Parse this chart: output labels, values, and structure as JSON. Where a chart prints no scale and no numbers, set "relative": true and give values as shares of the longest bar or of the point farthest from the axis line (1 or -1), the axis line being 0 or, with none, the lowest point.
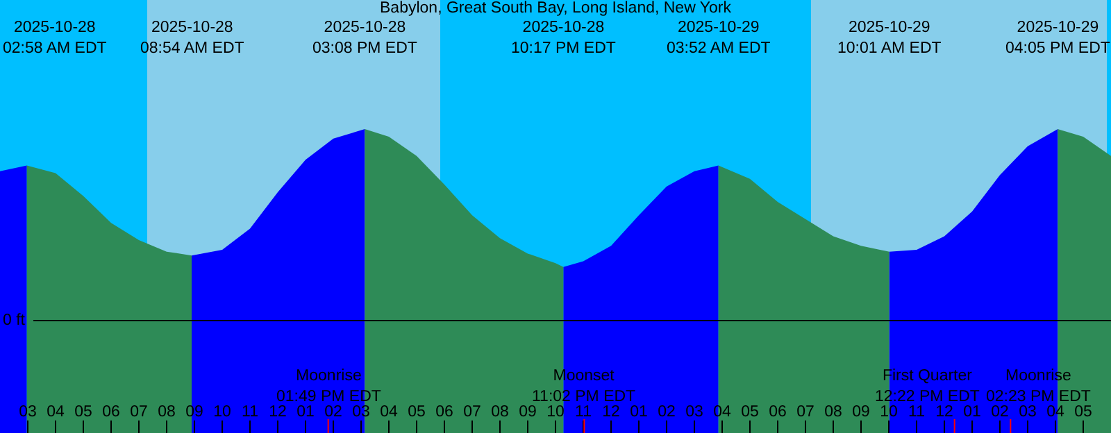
{
  "chart_data": {
    "type": "area",
    "title": "Babylon, Great South Bay, Long Island, New York",
    "relative": true,
    "x": [
      "2025-10-28T02:00",
      "2025-10-28T02:58",
      "2025-10-28T04:00",
      "2025-10-28T05:00",
      "2025-10-28T06:00",
      "2025-10-28T07:00",
      "2025-10-28T08:00",
      "2025-10-28T08:54",
      "2025-10-28T10:00",
      "2025-10-28T11:00",
      "2025-10-28T12:00",
      "2025-10-28T13:00",
      "2025-10-28T14:00",
      "2025-10-28T15:08",
      "2025-10-28T16:00",
      "2025-10-28T17:00",
      "2025-10-28T18:00",
      "2025-10-28T19:00",
      "2025-10-28T20:00",
      "2025-10-28T21:00",
      "2025-10-28T22:00",
      "2025-10-28T22:17",
      "2025-10-28T23:00",
      "2025-10-29T00:00",
      "2025-10-29T01:00",
      "2025-10-29T02:00",
      "2025-10-29T03:00",
      "2025-10-29T03:52",
      "2025-10-29T05:00",
      "2025-10-29T06:00",
      "2025-10-29T07:00",
      "2025-10-29T08:00",
      "2025-10-29T09:00",
      "2025-10-29T10:01",
      "2025-10-29T11:00",
      "2025-10-29T12:00",
      "2025-10-29T13:00",
      "2025-10-29T14:00",
      "2025-10-29T15:00",
      "2025-10-29T16:05",
      "2025-10-29T17:00",
      "2025-10-29T18:00"
    ],
    "series": [
      {
        "color": "#0000ff",
        "values": [
          0.78,
          0.81,
          null,
          null,
          null,
          null,
          null,
          0.34,
          0.37,
          0.48,
          0.67,
          0.84,
          0.95,
          1.0,
          null,
          null,
          null,
          null,
          null,
          null,
          null,
          0.28,
          0.31,
          0.39,
          0.55,
          0.7,
          0.78,
          0.81,
          null,
          null,
          null,
          null,
          null,
          0.36,
          0.37,
          0.44,
          0.57,
          0.76,
          0.91,
          1.0,
          null,
          null
        ]
      },
      {
        "color": "#2e8b57",
        "values": [
          null,
          0.81,
          0.77,
          0.65,
          0.51,
          0.42,
          0.36,
          0.34,
          null,
          null,
          null,
          null,
          null,
          1.0,
          0.96,
          0.86,
          0.71,
          0.55,
          0.43,
          0.35,
          0.3,
          0.28,
          null,
          null,
          null,
          null,
          null,
          0.81,
          0.74,
          0.62,
          0.53,
          0.44,
          0.39,
          0.36,
          null,
          null,
          null,
          null,
          null,
          1.0,
          0.96,
          0.86
        ]
      }
    ],
    "xlim": [
      "2025-10-28T02:00",
      "2025-10-29T18:00"
    ],
    "xticks": [
      {
        "value": "2025-10-28T03:00",
        "label": "03"
      },
      {
        "value": "2025-10-28T04:00",
        "label": "04"
      },
      {
        "value": "2025-10-28T05:00",
        "label": "05"
      },
      {
        "value": "2025-10-28T06:00",
        "label": "06"
      },
      {
        "value": "2025-10-28T07:00",
        "label": "07"
      },
      {
        "value": "2025-10-28T08:00",
        "label": "08"
      },
      {
        "value": "2025-10-28T09:00",
        "label": "09"
      },
      {
        "value": "2025-10-28T10:00",
        "label": "10"
      },
      {
        "value": "2025-10-28T11:00",
        "label": "11"
      },
      {
        "value": "2025-10-28T12:00",
        "label": "12"
      },
      {
        "value": "2025-10-28T13:00",
        "label": "01"
      },
      {
        "value": "2025-10-28T14:00",
        "label": "02"
      },
      {
        "value": "2025-10-28T15:00",
        "label": "03"
      },
      {
        "value": "2025-10-28T16:00",
        "label": "04"
      },
      {
        "value": "2025-10-28T17:00",
        "label": "05"
      },
      {
        "value": "2025-10-28T18:00",
        "label": "06"
      },
      {
        "value": "2025-10-28T19:00",
        "label": "07"
      },
      {
        "value": "2025-10-28T20:00",
        "label": "08"
      },
      {
        "value": "2025-10-28T21:00",
        "label": "09"
      },
      {
        "value": "2025-10-28T22:00",
        "label": "10"
      },
      {
        "value": "2025-10-28T23:00",
        "label": "11"
      },
      {
        "value": "2025-10-29T00:00",
        "label": "12"
      },
      {
        "value": "2025-10-29T01:00",
        "label": "01"
      },
      {
        "value": "2025-10-29T02:00",
        "label": "02"
      },
      {
        "value": "2025-10-29T03:00",
        "label": "03"
      },
      {
        "value": "2025-10-29T04:00",
        "label": "04"
      },
      {
        "value": "2025-10-29T05:00",
        "label": "05"
      },
      {
        "value": "2025-10-29T06:00",
        "label": "06"
      },
      {
        "value": "2025-10-29T07:00",
        "label": "07"
      },
      {
        "value": "2025-10-29T08:00",
        "label": "08"
      },
      {
        "value": "2025-10-29T09:00",
        "label": "09"
      },
      {
        "value": "2025-10-29T10:00",
        "label": "10"
      },
      {
        "value": "2025-10-29T11:00",
        "label": "11"
      },
      {
        "value": "2025-10-29T12:00",
        "label": "12"
      },
      {
        "value": "2025-10-29T13:00",
        "label": "01"
      },
      {
        "value": "2025-10-29T14:00",
        "label": "02"
      },
      {
        "value": "2025-10-29T15:00",
        "label": "03"
      },
      {
        "value": "2025-10-29T16:00",
        "label": "04"
      },
      {
        "value": "2025-10-29T17:00",
        "label": "05"
      }
    ],
    "bands": [
      {
        "axis": "x",
        "from": "2025-10-28T02:00",
        "to": "2025-10-28T07:18",
        "color": "#00bfff"
      },
      {
        "axis": "x",
        "from": "2025-10-28T07:18",
        "to": "2025-10-28T17:51",
        "color": "#87ceeb"
      },
      {
        "axis": "x",
        "from": "2025-10-28T17:51",
        "to": "2025-10-29T07:12",
        "color": "#00bfff"
      },
      {
        "axis": "x",
        "from": "2025-10-29T07:12",
        "to": "2025-10-29T17:51",
        "color": "#87ceeb"
      },
      {
        "axis": "x",
        "from": "2025-10-29T17:51",
        "to": "2025-10-29T18:00",
        "color": "#00bfff"
      }
    ],
    "ref_lines": [
      {
        "axis": "y",
        "value": 0,
        "label": "0 ft",
        "color": "#000000"
      },
      {
        "axis": "x",
        "value": "2025-10-28T13:49",
        "label": "Moonrise\n01:49 PM EDT",
        "color": "#ff0000"
      },
      {
        "axis": "x",
        "value": "2025-10-28T23:02",
        "label": "Moonset\n11:02 PM EDT",
        "color": "#ff0000"
      },
      {
        "axis": "x",
        "value": "2025-10-29T12:22",
        "label": "First Quarter\n12:22 PM EDT",
        "color": "#ff0000"
      },
      {
        "axis": "x",
        "value": "2025-10-29T14:23",
        "label": "Moonrise\n02:23 PM EDT",
        "color": "#ff0000"
      }
    ],
    "annotations": [
      "2025-10-28\n02:58 AM EDT",
      "2025-10-28\n08:54 AM EDT",
      "2025-10-28\n03:08 PM EDT",
      "2025-10-28\n10:17 PM EDT",
      "2025-10-29\n03:52 AM EDT",
      "2025-10-29\n10:01 AM EDT",
      "2025-10-29\n04:05 PM EDT"
    ]
  }
}
